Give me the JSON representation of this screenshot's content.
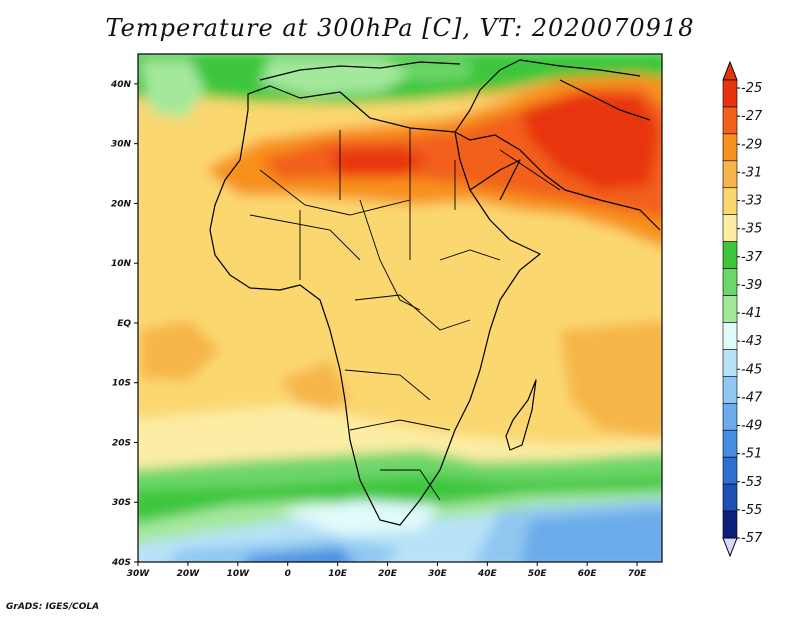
{
  "title": "Temperature at 300hPa [C], VT: 2020070918",
  "credit": "GrADS: IGES/COLA",
  "map": {
    "projection": "latlon",
    "lon_range": [
      -30,
      75
    ],
    "lat_range": [
      -40,
      45
    ],
    "x_ticks": [
      "30W",
      "20W",
      "10W",
      "0",
      "10E",
      "20E",
      "30E",
      "40E",
      "50E",
      "60E",
      "70E"
    ],
    "y_ticks": [
      "40N",
      "30N",
      "20N",
      "10N",
      "EQ",
      "10S",
      "20S",
      "30S",
      "40S"
    ],
    "x_tick_values": [
      -30,
      -20,
      -10,
      0,
      10,
      20,
      30,
      40,
      50,
      60,
      70
    ],
    "y_tick_values": [
      40,
      30,
      20,
      10,
      0,
      -10,
      -20,
      -30,
      -40
    ],
    "features": [
      "shaded temperature field",
      "coastlines",
      "country borders"
    ]
  },
  "colorbar": {
    "labels": [
      "-25",
      "-27",
      "-29",
      "-31",
      "-33",
      "-35",
      "-37",
      "-39",
      "-41",
      "-43",
      "-45",
      "-47",
      "-49",
      "-51",
      "-53",
      "-55",
      "-57"
    ],
    "colors": [
      "#e8340c",
      "#f2611b",
      "#f7911f",
      "#f6b54a",
      "#fbd770",
      "#fdeda4",
      "#3dc63d",
      "#6dd66b",
      "#a4e89c",
      "#e1fbfb",
      "#b8e2f8",
      "#8fc7f1",
      "#6aabe9",
      "#478ee0",
      "#2f6fd0",
      "#1e4fb5",
      "#0c1f7a"
    ],
    "top_arrow_color": "#e8340c",
    "bottom_arrow_color": "#d9d7ff"
  }
}
